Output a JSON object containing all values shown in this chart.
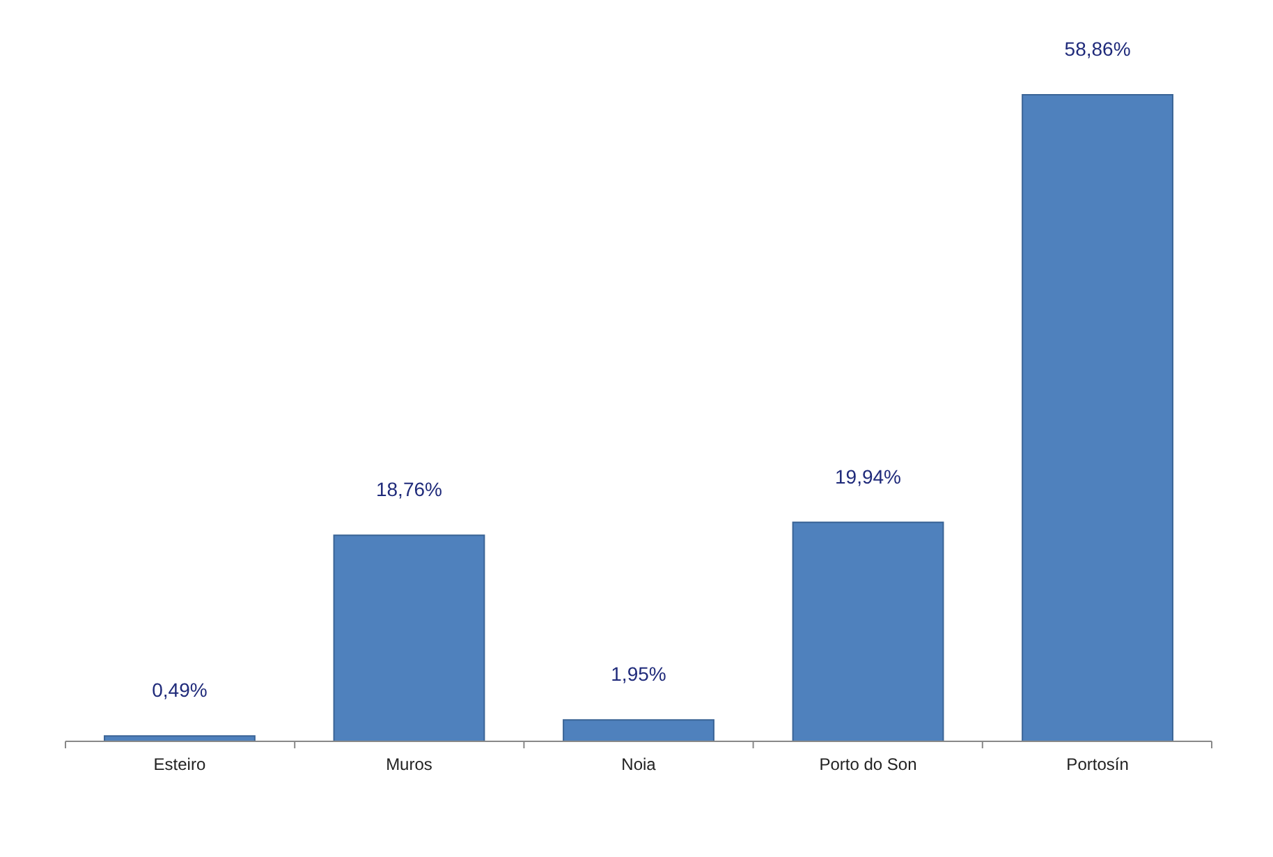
{
  "chart_data": {
    "type": "bar",
    "categories": [
      "Esteiro",
      "Muros",
      "Noia",
      "Porto do Son",
      "Portosín"
    ],
    "values": [
      0.49,
      18.76,
      1.95,
      19.94,
      58.86
    ],
    "value_labels": [
      "0,49%",
      "18,76%",
      "1,95%",
      "19,94%",
      "58,86%"
    ],
    "color": "#4f81bd",
    "grid": false
  }
}
